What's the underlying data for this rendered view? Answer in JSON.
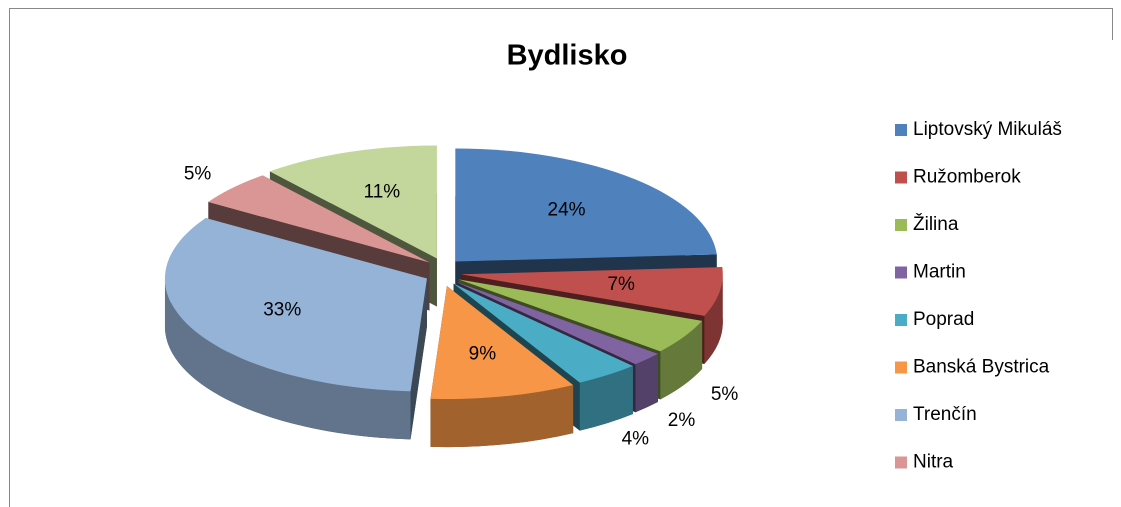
{
  "chart_data": {
    "type": "pie3d",
    "title": "Bydlisko",
    "categories": [
      "Liptovský Mikuláš",
      "Ružomberok",
      "Žilina",
      "Martin",
      "Poprad",
      "Banská Bystrica",
      "Trenčín",
      "Nitra",
      null
    ],
    "values": [
      24,
      7,
      5,
      2,
      4,
      9,
      33,
      5,
      11
    ],
    "value_labels": [
      "24%",
      "7%",
      "5%",
      "2%",
      "4%",
      "9%",
      "33%",
      "5%",
      "11%"
    ],
    "colors": [
      "#4F81BD",
      "#C0504D",
      "#9BBB59",
      "#8064A2",
      "#4BACC6",
      "#F79646",
      "#95B3D7",
      "#D99694",
      "#C3D69B"
    ],
    "legend": "right"
  }
}
